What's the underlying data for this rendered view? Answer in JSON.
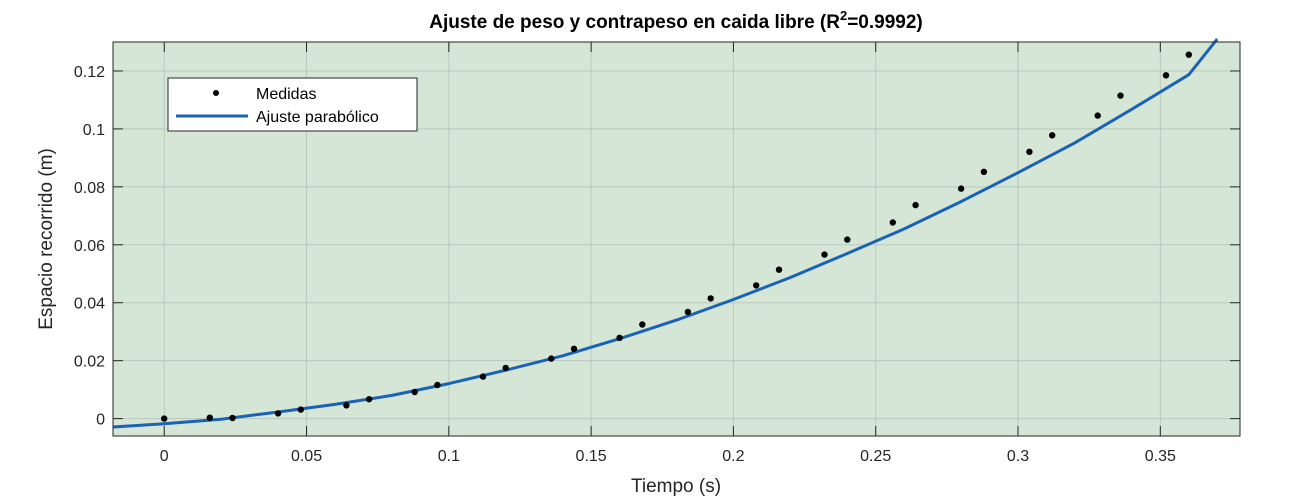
{
  "chart_data": {
    "type": "scatter",
    "title": {
      "prefix": "Ajuste de peso y contrapeso en caida libre (R",
      "superscript": "2",
      "suffix": "=0.9992)"
    },
    "xlabel": "Tiempo (s)",
    "ylabel": "Espacio recorrido (m)",
    "xlim": [
      -0.018,
      0.378
    ],
    "ylim": [
      -0.006,
      0.13
    ],
    "xticks": [
      0,
      0.05,
      0.1,
      0.15,
      0.2,
      0.25,
      0.3,
      0.35
    ],
    "xtick_labels": [
      "0",
      "0.05",
      "0.1",
      "0.15",
      "0.2",
      "0.25",
      "0.3",
      "0.35"
    ],
    "yticks": [
      0,
      0.02,
      0.04,
      0.06,
      0.08,
      0.1,
      0.12
    ],
    "ytick_labels": [
      "0",
      "0.02",
      "0.04",
      "0.06",
      "0.08",
      "0.1",
      "0.12"
    ],
    "grid": true,
    "legend_position": "top-left",
    "legend": [
      "Medidas",
      "Ajuste parabólico"
    ],
    "background_color": "#d5e6d7",
    "series": [
      {
        "name": "Medidas",
        "kind": "points",
        "color": "#000000",
        "x": [
          0,
          0.016,
          0.024,
          0.04,
          0.048,
          0.064,
          0.072,
          0.088,
          0.096,
          0.112,
          0.12,
          0.136,
          0.144,
          0.16,
          0.168,
          0.184,
          0.192,
          0.208,
          0.216,
          0.232,
          0.24,
          0.256,
          0.264,
          0.28,
          0.288,
          0.304,
          0.312,
          0.328,
          0.336,
          0.352,
          0.36
        ],
        "y": [
          0.0,
          0.0003,
          0.0002,
          0.0018,
          0.0031,
          0.0046,
          0.0067,
          0.0092,
          0.0116,
          0.0145,
          0.0175,
          0.0207,
          0.0241,
          0.0279,
          0.0325,
          0.0368,
          0.0415,
          0.046,
          0.0514,
          0.0566,
          0.0618,
          0.0677,
          0.0737,
          0.0794,
          0.0852,
          0.0921,
          0.0978,
          0.1046,
          0.1115,
          0.1185,
          0.1256
        ]
      },
      {
        "name": "Ajuste parabólico",
        "kind": "curve",
        "color": "#1a62b4",
        "x": [
          -0.018,
          0.0,
          0.02,
          0.04,
          0.06,
          0.08,
          0.1,
          0.12,
          0.14,
          0.16,
          0.18,
          0.2,
          0.22,
          0.24,
          0.26,
          0.28,
          0.3,
          0.32,
          0.34,
          0.36,
          0.37
        ],
        "y": [
          -0.0029,
          -0.0018,
          -0.0002,
          0.0023,
          0.0049,
          0.008,
          0.0121,
          0.0167,
          0.0217,
          0.0276,
          0.034,
          0.0411,
          0.0487,
          0.057,
          0.0655,
          0.0749,
          0.0849,
          0.0952,
          0.1068,
          0.1187,
          0.131
        ]
      }
    ]
  }
}
